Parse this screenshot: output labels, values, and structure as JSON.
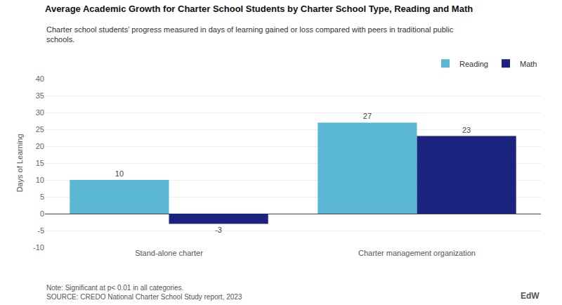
{
  "chart_data": {
    "type": "bar",
    "title": "Average Academic Growth for Charter School Students by Charter School Type, Reading and Math",
    "subtitle": "Charter school students’ progress measured in days of learning gained or loss compared with peers in traditional public\nschools.",
    "y_label": "Days of Learning",
    "categories": [
      "Stand-alone charter",
      "Charter management organization"
    ],
    "series": [
      {
        "name": "Reading",
        "color": "#5BB8D4",
        "values": [
          10,
          27
        ]
      },
      {
        "name": "Math",
        "color": "#1A237E",
        "values": [
          -3,
          23
        ]
      }
    ],
    "ylim": [
      -10,
      40
    ],
    "yticks": [
      -10,
      -5,
      0,
      5,
      10,
      15,
      20,
      25,
      30,
      35,
      40
    ],
    "grid": true,
    "legend": "upper right",
    "data_labels": true,
    "annotations": [
      "Note: Significant at p< 0.01 in all categories.\nSOURCE: CREDO National Charter School Study report, 2023",
      "EdW"
    ]
  }
}
